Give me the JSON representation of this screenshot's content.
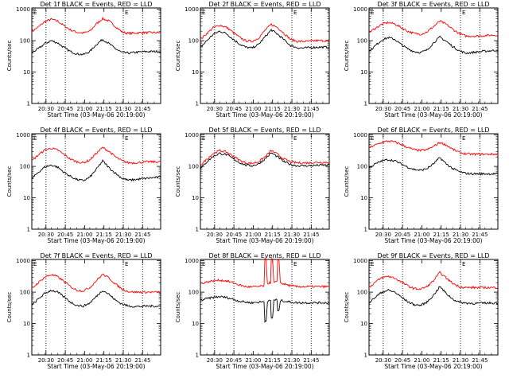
{
  "figure": {
    "xlabel": "Start Time (03-May-06 20:19:00)",
    "ylabel": "Counts/sec",
    "x_tick_labels": [
      "20:30",
      "20:45",
      "21:00",
      "21:15",
      "21:30",
      "21:45"
    ],
    "y_tick_labels": [
      "1",
      "10",
      "100",
      "1000"
    ],
    "marker_label": "E"
  },
  "chart_data": [
    {
      "type": "line",
      "title": "Det 1f BLACK = Events, RED = LLD",
      "ylim": [
        1,
        1100
      ],
      "yscale": "log",
      "x_unit": "minutes from 20:19:00",
      "xlim": [
        0,
        100
      ],
      "x_ticks": [
        11,
        26,
        41,
        56,
        71,
        86
      ],
      "vlines": [
        11,
        26,
        71,
        86
      ],
      "series": [
        {
          "name": "RED",
          "color": "#ff0000",
          "x": [
            0,
            5,
            10,
            15,
            20,
            25,
            30,
            35,
            40,
            45,
            50,
            55,
            60,
            65,
            70,
            75,
            80,
            85,
            90,
            95,
            100
          ],
          "y": [
            200,
            270,
            400,
            480,
            420,
            300,
            220,
            185,
            175,
            200,
            340,
            500,
            420,
            280,
            190,
            170,
            175,
            180,
            180,
            180,
            180
          ]
        },
        {
          "name": "BLACK",
          "color": "#000000",
          "x": [
            0,
            5,
            10,
            15,
            20,
            25,
            30,
            35,
            40,
            45,
            50,
            55,
            60,
            65,
            70,
            75,
            80,
            85,
            90,
            95,
            100
          ],
          "y": [
            42,
            55,
            80,
            100,
            85,
            60,
            45,
            38,
            36,
            45,
            75,
            110,
            80,
            55,
            42,
            40,
            42,
            44,
            45,
            45,
            46
          ]
        }
      ]
    },
    {
      "type": "line",
      "title": "Det 2f BLACK = Events, RED = LLD",
      "ylim": [
        1,
        1100
      ],
      "yscale": "log",
      "x_unit": "minutes from 20:19:00",
      "xlim": [
        0,
        100
      ],
      "x_ticks": [
        11,
        26,
        41,
        56,
        71,
        86
      ],
      "vlines": [
        11,
        26,
        71,
        86
      ],
      "series": [
        {
          "name": "RED",
          "color": "#ff0000",
          "x": [
            0,
            5,
            10,
            15,
            20,
            25,
            30,
            35,
            40,
            45,
            50,
            55,
            60,
            65,
            70,
            75,
            80,
            85,
            90,
            95,
            100
          ],
          "y": [
            110,
            170,
            260,
            310,
            270,
            190,
            130,
            100,
            95,
            120,
            210,
            330,
            260,
            170,
            110,
            95,
            95,
            95,
            100,
            100,
            100
          ]
        },
        {
          "name": "BLACK",
          "color": "#000000",
          "x": [
            0,
            5,
            10,
            15,
            20,
            25,
            30,
            35,
            40,
            45,
            50,
            55,
            60,
            65,
            70,
            75,
            80,
            85,
            90,
            95,
            100
          ],
          "y": [
            60,
            100,
            160,
            200,
            170,
            115,
            80,
            62,
            58,
            75,
            130,
            220,
            160,
            105,
            70,
            60,
            58,
            60,
            62,
            62,
            62
          ]
        }
      ]
    },
    {
      "type": "line",
      "title": "Det 3f BLACK = Events, RED = LLD",
      "ylim": [
        1,
        1100
      ],
      "yscale": "log",
      "x_unit": "minutes from 20:19:00",
      "xlim": [
        0,
        100
      ],
      "x_ticks": [
        11,
        26,
        41,
        56,
        71,
        86
      ],
      "vlines": [
        11,
        26,
        71,
        86
      ],
      "series": [
        {
          "name": "RED",
          "color": "#ff0000",
          "x": [
            0,
            5,
            10,
            15,
            20,
            25,
            30,
            35,
            40,
            45,
            50,
            55,
            60,
            65,
            70,
            75,
            80,
            85,
            90,
            95,
            100
          ],
          "y": [
            180,
            250,
            330,
            380,
            340,
            260,
            200,
            170,
            160,
            190,
            280,
            420,
            330,
            230,
            170,
            140,
            140,
            140,
            145,
            150,
            150
          ]
        },
        {
          "name": "BLACK",
          "color": "#000000",
          "x": [
            0,
            5,
            10,
            15,
            20,
            25,
            30,
            35,
            40,
            45,
            50,
            55,
            60,
            65,
            70,
            75,
            80,
            85,
            90,
            95,
            100
          ],
          "y": [
            45,
            70,
            105,
            125,
            110,
            75,
            55,
            45,
            42,
            50,
            85,
            130,
            95,
            65,
            48,
            40,
            42,
            44,
            46,
            48,
            50
          ]
        }
      ]
    },
    {
      "type": "line",
      "title": "Det 4f BLACK = Events, RED = LLD",
      "ylim": [
        1,
        1100
      ],
      "yscale": "log",
      "x_unit": "minutes from 20:19:00",
      "xlim": [
        0,
        100
      ],
      "x_ticks": [
        11,
        26,
        41,
        56,
        71,
        86
      ],
      "vlines": [
        11,
        26,
        71,
        86
      ],
      "series": [
        {
          "name": "RED",
          "color": "#ff0000",
          "x": [
            0,
            5,
            10,
            15,
            20,
            25,
            30,
            35,
            40,
            45,
            50,
            55,
            60,
            65,
            70,
            75,
            80,
            85,
            90,
            95,
            100
          ],
          "y": [
            150,
            230,
            330,
            380,
            330,
            240,
            170,
            140,
            130,
            160,
            260,
            400,
            300,
            200,
            150,
            130,
            130,
            135,
            140,
            140,
            140
          ]
        },
        {
          "name": "BLACK",
          "color": "#000000",
          "x": [
            0,
            5,
            10,
            15,
            20,
            25,
            30,
            35,
            40,
            45,
            50,
            55,
            60,
            65,
            70,
            75,
            80,
            85,
            90,
            95,
            100
          ],
          "y": [
            40,
            65,
            95,
            110,
            95,
            65,
            48,
            38,
            35,
            45,
            80,
            150,
            90,
            60,
            42,
            36,
            38,
            40,
            42,
            44,
            45
          ]
        }
      ]
    },
    {
      "type": "line",
      "title": "Det 5f BLACK = Events, RED = LLD",
      "ylim": [
        1,
        1100
      ],
      "yscale": "log",
      "x_unit": "minutes from 20:19:00",
      "xlim": [
        0,
        100
      ],
      "x_ticks": [
        11,
        26,
        41,
        56,
        71,
        86
      ],
      "vlines": [
        11,
        26,
        71,
        86
      ],
      "series": [
        {
          "name": "RED",
          "color": "#ff0000",
          "x": [
            0,
            5,
            10,
            15,
            20,
            25,
            30,
            35,
            40,
            45,
            50,
            55,
            60,
            65,
            70,
            75,
            80,
            85,
            90,
            95,
            100
          ],
          "y": [
            110,
            170,
            260,
            320,
            290,
            220,
            160,
            130,
            125,
            140,
            200,
            320,
            240,
            170,
            140,
            130,
            130,
            130,
            135,
            135,
            135
          ]
        },
        {
          "name": "BLACK",
          "color": "#000000",
          "x": [
            0,
            5,
            10,
            15,
            20,
            25,
            30,
            35,
            40,
            45,
            50,
            55,
            60,
            65,
            70,
            75,
            80,
            85,
            90,
            95,
            100
          ],
          "y": [
            85,
            140,
            210,
            260,
            240,
            180,
            135,
            110,
            105,
            120,
            170,
            270,
            200,
            140,
            115,
            105,
            105,
            105,
            108,
            110,
            110
          ]
        }
      ]
    },
    {
      "type": "line",
      "title": "Det 6f BLACK = Events, RED = LLD",
      "ylim": [
        1,
        1100
      ],
      "yscale": "log",
      "x_unit": "minutes from 20:19:00",
      "xlim": [
        0,
        100
      ],
      "x_ticks": [
        11,
        26,
        41,
        56,
        71,
        86
      ],
      "vlines": [
        11,
        26,
        71,
        86
      ],
      "series": [
        {
          "name": "RED",
          "color": "#ff0000",
          "x": [
            0,
            5,
            10,
            15,
            20,
            25,
            30,
            35,
            40,
            45,
            50,
            55,
            60,
            65,
            70,
            75,
            80,
            85,
            90,
            95,
            100
          ],
          "y": [
            400,
            480,
            580,
            640,
            600,
            500,
            400,
            340,
            320,
            340,
            430,
            580,
            480,
            350,
            280,
            250,
            245,
            245,
            245,
            245,
            245
          ]
        },
        {
          "name": "BLACK",
          "color": "#000000",
          "x": [
            0,
            5,
            10,
            15,
            20,
            25,
            30,
            35,
            40,
            45,
            50,
            55,
            60,
            65,
            70,
            75,
            80,
            85,
            90,
            95,
            100
          ],
          "y": [
            90,
            120,
            150,
            165,
            150,
            120,
            95,
            80,
            75,
            85,
            120,
            190,
            120,
            85,
            68,
            60,
            58,
            58,
            58,
            58,
            58
          ]
        }
      ]
    },
    {
      "type": "line",
      "title": "Det 7f BLACK = Events, RED = LLD",
      "ylim": [
        1,
        1100
      ],
      "yscale": "log",
      "x_unit": "minutes from 20:19:00",
      "xlim": [
        0,
        100
      ],
      "x_ticks": [
        11,
        26,
        41,
        56,
        71,
        86
      ],
      "vlines": [
        11,
        26,
        71,
        86
      ],
      "series": [
        {
          "name": "RED",
          "color": "#ff0000",
          "x": [
            0,
            5,
            10,
            15,
            20,
            25,
            30,
            35,
            40,
            45,
            50,
            55,
            60,
            65,
            70,
            75,
            80,
            85,
            90,
            95,
            100
          ],
          "y": [
            130,
            200,
            300,
            360,
            310,
            220,
            150,
            115,
            110,
            140,
            230,
            370,
            280,
            180,
            125,
            105,
            100,
            100,
            100,
            100,
            100
          ]
        },
        {
          "name": "BLACK",
          "color": "#000000",
          "x": [
            0,
            5,
            10,
            15,
            20,
            25,
            30,
            35,
            40,
            45,
            50,
            55,
            60,
            65,
            70,
            75,
            80,
            85,
            90,
            95,
            100
          ],
          "y": [
            38,
            60,
            90,
            115,
            100,
            70,
            48,
            38,
            36,
            45,
            72,
            115,
            85,
            55,
            42,
            36,
            35,
            35,
            36,
            36,
            36
          ]
        }
      ]
    },
    {
      "type": "line",
      "title": "Det 8f BLACK = Events, RED = LLD",
      "ylim": [
        1,
        1100
      ],
      "yscale": "log",
      "x_unit": "minutes from 20:19:00",
      "xlim": [
        0,
        100
      ],
      "x_ticks": [
        11,
        26,
        41,
        56,
        71,
        86
      ],
      "vlines": [
        11,
        26,
        71,
        86
      ],
      "series": [
        {
          "name": "RED",
          "color": "#ff0000",
          "x": [
            0,
            5,
            10,
            15,
            20,
            25,
            30,
            35,
            40,
            45,
            50,
            50,
            51,
            52,
            55,
            55,
            56,
            57,
            60,
            60,
            61,
            62,
            65,
            70,
            75,
            80,
            85,
            90,
            95,
            100
          ],
          "y": [
            190,
            210,
            230,
            240,
            230,
            200,
            170,
            150,
            145,
            150,
            160,
            1100,
            1100,
            190,
            200,
            1100,
            1100,
            200,
            210,
            1100,
            1100,
            200,
            180,
            160,
            150,
            150,
            150,
            150,
            150,
            150
          ]
        },
        {
          "name": "BLACK",
          "color": "#000000",
          "x": [
            0,
            5,
            10,
            15,
            20,
            25,
            30,
            35,
            40,
            45,
            50,
            50,
            51,
            52,
            55,
            55,
            56,
            57,
            60,
            60,
            61,
            62,
            65,
            70,
            75,
            80,
            85,
            90,
            95,
            100
          ],
          "y": [
            55,
            62,
            68,
            72,
            68,
            60,
            52,
            48,
            46,
            48,
            50,
            12,
            12,
            50,
            55,
            15,
            15,
            56,
            58,
            25,
            25,
            55,
            52,
            48,
            46,
            46,
            46,
            46,
            46,
            46
          ]
        }
      ]
    },
    {
      "type": "line",
      "title": "Det 9f BLACK = Events, RED = LLD",
      "ylim": [
        1,
        1100
      ],
      "yscale": "log",
      "x_unit": "minutes from 20:19:00",
      "xlim": [
        0,
        100
      ],
      "x_ticks": [
        11,
        26,
        41,
        56,
        71,
        86
      ],
      "vlines": [
        11,
        26,
        71,
        86
      ],
      "series": [
        {
          "name": "RED",
          "color": "#ff0000",
          "x": [
            0,
            5,
            10,
            15,
            20,
            25,
            30,
            35,
            40,
            45,
            50,
            55,
            60,
            65,
            70,
            75,
            80,
            85,
            90,
            95,
            100
          ],
          "y": [
            140,
            210,
            290,
            320,
            280,
            210,
            160,
            130,
            125,
            150,
            230,
            420,
            280,
            190,
            150,
            140,
            140,
            140,
            140,
            140,
            140
          ]
        },
        {
          "name": "BLACK",
          "color": "#000000",
          "x": [
            0,
            5,
            10,
            15,
            20,
            25,
            30,
            35,
            40,
            45,
            50,
            55,
            60,
            65,
            70,
            75,
            80,
            85,
            90,
            95,
            100
          ],
          "y": [
            45,
            70,
            100,
            115,
            100,
            70,
            50,
            40,
            38,
            48,
            80,
            150,
            90,
            60,
            48,
            45,
            44,
            44,
            45,
            45,
            45
          ]
        }
      ]
    }
  ]
}
